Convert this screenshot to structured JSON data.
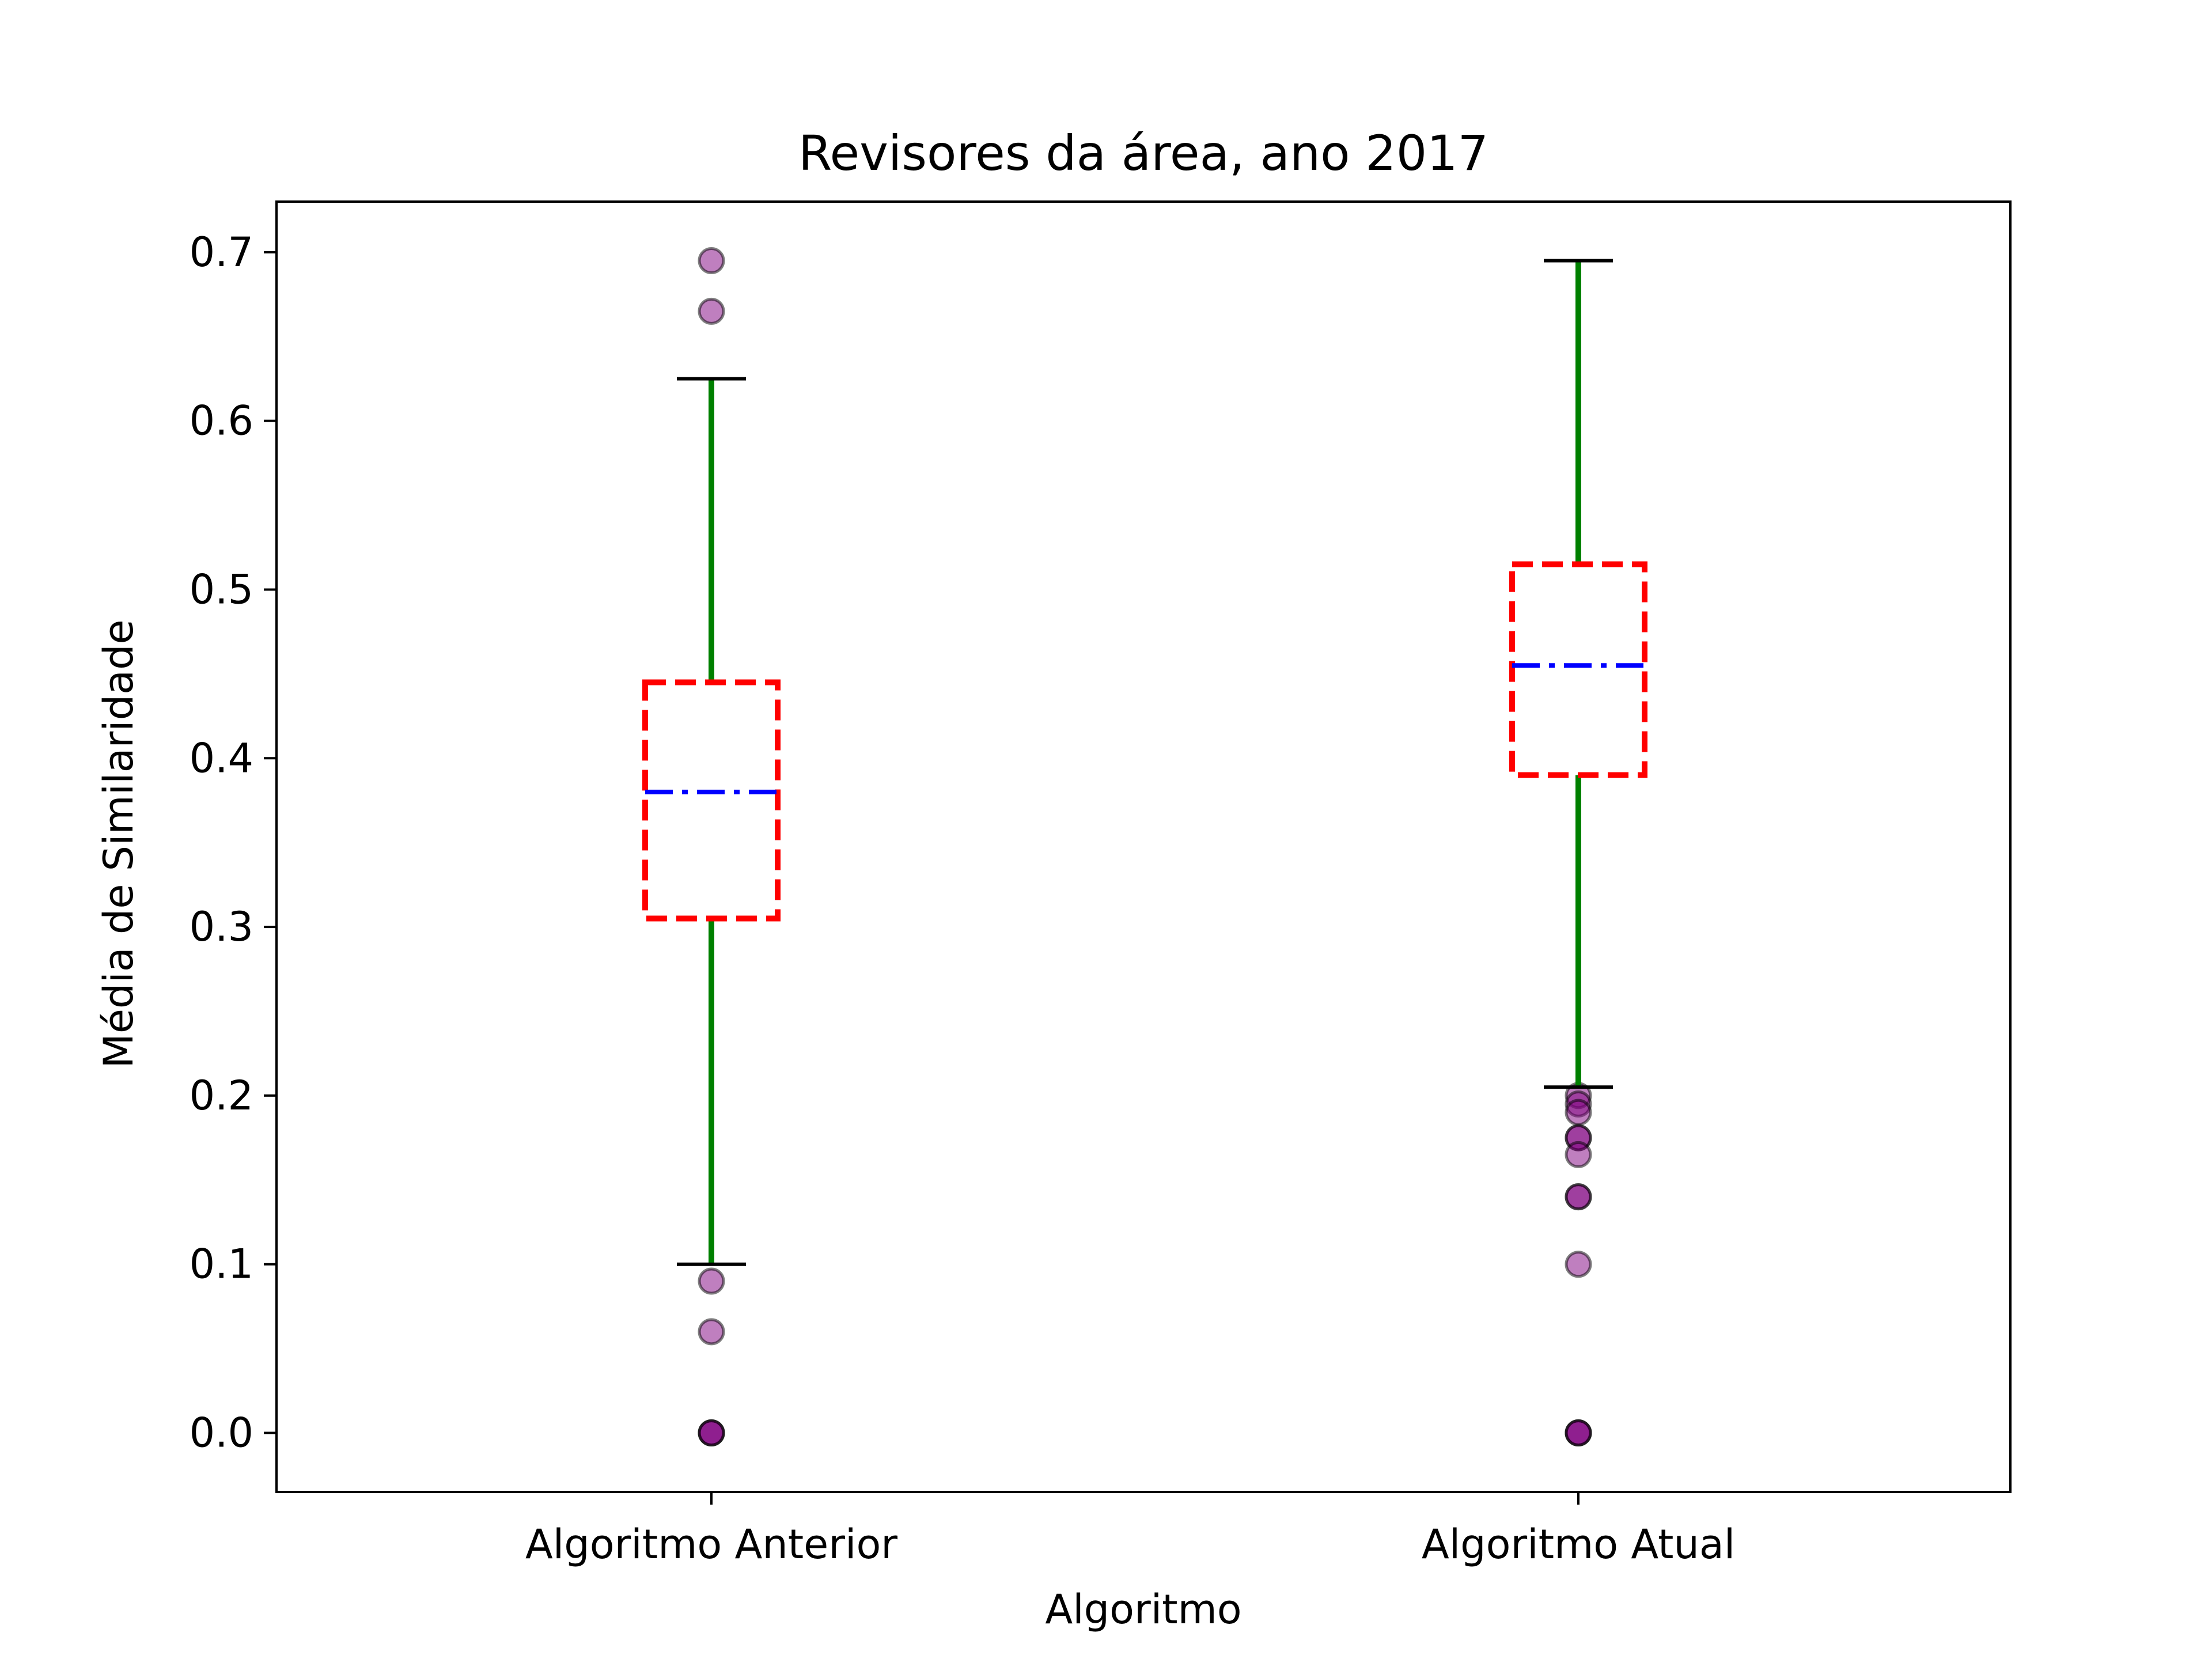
{
  "chart_data": {
    "type": "box",
    "title": "Revisores da área, ano 2017",
    "xlabel": "Algoritmo",
    "ylabel": "Média de Similaridade",
    "ylim": [
      -0.035,
      0.73
    ],
    "yticks": [
      "0.0",
      "0.1",
      "0.2",
      "0.3",
      "0.4",
      "0.5",
      "0.6",
      "0.7"
    ],
    "grid": false,
    "categories": [
      "Algoritmo Anterior",
      "Algoritmo Atual"
    ],
    "boxes": [
      {
        "label": "Algoritmo Anterior",
        "whisker_low": 0.1,
        "q1": 0.305,
        "median": 0.38,
        "q3": 0.445,
        "whisker_high": 0.625,
        "outliers": [
          0.695,
          0.665,
          0.09,
          0.06,
          0.0,
          0.0,
          0.0
        ]
      },
      {
        "label": "Algoritmo Atual",
        "whisker_low": 0.205,
        "q1": 0.39,
        "median": 0.455,
        "q3": 0.515,
        "whisker_high": 0.695,
        "outliers": [
          0.2,
          0.195,
          0.19,
          0.175,
          0.175,
          0.165,
          0.14,
          0.14,
          0.1,
          0.0,
          0.0,
          0.0
        ]
      }
    ],
    "colors": {
      "box": "#ff0000",
      "median": "#0000ff",
      "whisker": "#008000",
      "cap": "#000000",
      "outlier_fill": "#800080",
      "outlier_edge": "#000000"
    }
  }
}
